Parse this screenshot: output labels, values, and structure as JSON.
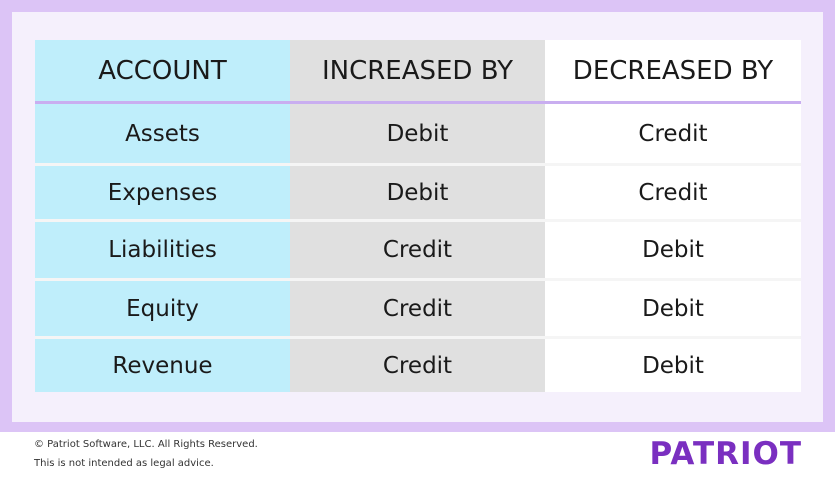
{
  "table": {
    "header": [
      "ACCOUNT",
      "INCREASED BY",
      "DECREASED BY"
    ],
    "rows": [
      [
        "Assets",
        "Debit",
        "Credit"
      ],
      [
        "Expenses",
        "Debit",
        "Credit"
      ],
      [
        "Liabilities",
        "Credit",
        "Debit"
      ],
      [
        "Equity",
        "Credit",
        "Debit"
      ],
      [
        "Revenue",
        "Credit",
        "Debit"
      ]
    ]
  },
  "footer": {
    "copyright": "© Patriot Software, LLC. All Rights Reserved.",
    "disclaimer": "This is not intended as legal advice.",
    "logo": "PATRIOT"
  }
}
